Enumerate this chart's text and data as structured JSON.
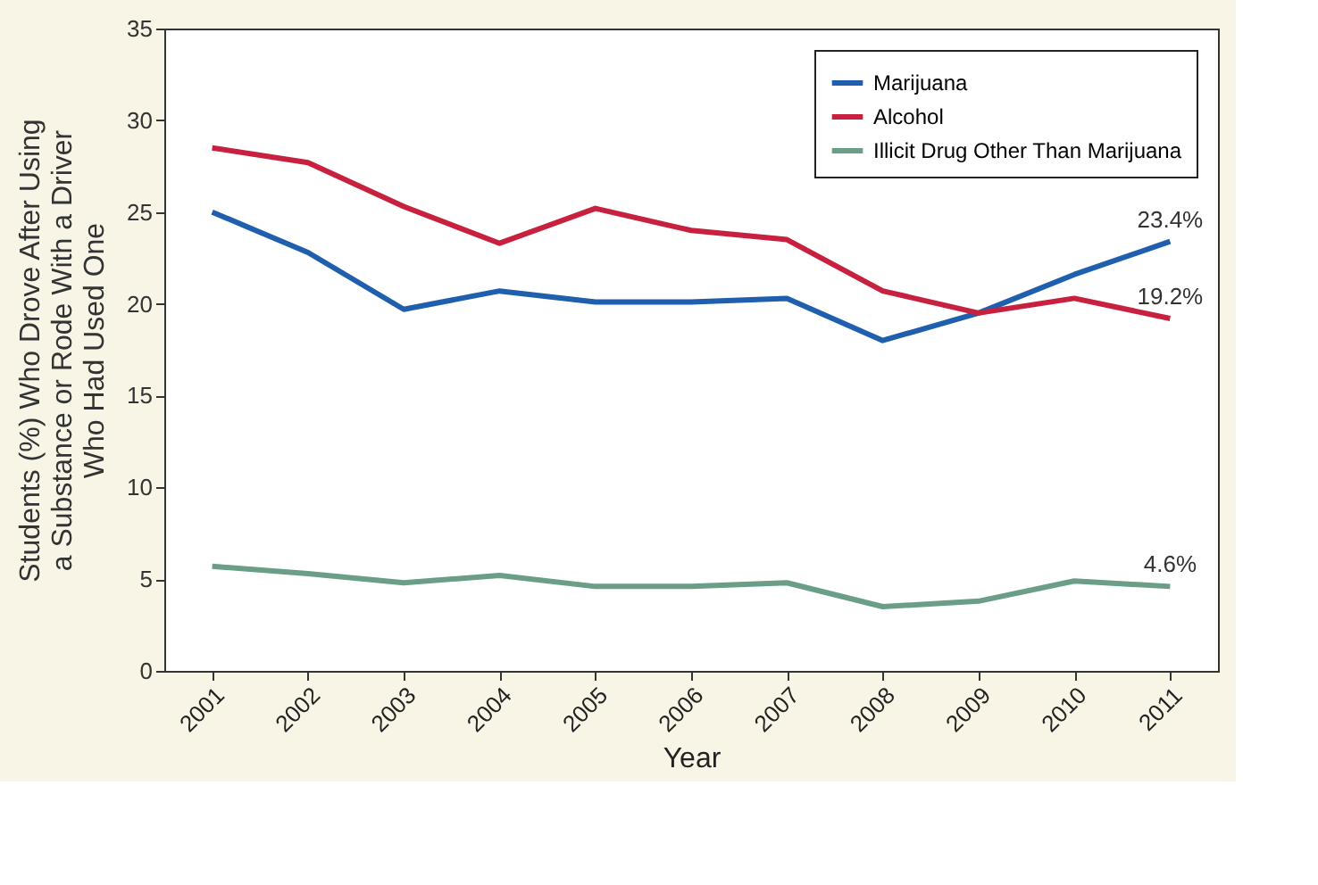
{
  "chart_data": {
    "type": "line",
    "xlabel": "Year",
    "ylabel": "Students (%) Who Drove After Using\na Substance or Rode With a Driver\nWho Had Used One",
    "categories": [
      "2001",
      "2002",
      "2003",
      "2004",
      "2005",
      "2006",
      "2007",
      "2008",
      "2009",
      "2010",
      "2011"
    ],
    "series": [
      {
        "name": "Marijuana",
        "color": "#1f5fad",
        "values": [
          25.0,
          22.8,
          19.7,
          20.7,
          20.1,
          20.1,
          20.3,
          18.0,
          19.5,
          21.6,
          23.4
        ],
        "value_labels": [
          null,
          null,
          null,
          null,
          null,
          null,
          null,
          null,
          null,
          null,
          "23.4%"
        ]
      },
      {
        "name": "Alcohol",
        "color": "#c8203f",
        "values": [
          28.5,
          27.7,
          25.3,
          23.3,
          25.2,
          24.0,
          23.5,
          20.7,
          19.5,
          20.3,
          19.2
        ],
        "value_labels": [
          null,
          null,
          null,
          null,
          null,
          null,
          null,
          null,
          null,
          null,
          "19.2%"
        ]
      },
      {
        "name": "Illicit Drug Other Than Marijuana",
        "color": "#6a9e86",
        "values": [
          5.7,
          5.3,
          4.8,
          5.2,
          4.6,
          4.6,
          4.8,
          3.5,
          3.8,
          4.9,
          4.6
        ],
        "value_labels": [
          null,
          null,
          null,
          null,
          null,
          null,
          null,
          null,
          null,
          null,
          "4.6%"
        ]
      }
    ],
    "ylim": [
      0,
      35
    ],
    "yticks": [
      0,
      5,
      10,
      15,
      20,
      25,
      30,
      35
    ],
    "grid": false,
    "legend": "top right",
    "marker": "none",
    "line_style": "solid"
  }
}
